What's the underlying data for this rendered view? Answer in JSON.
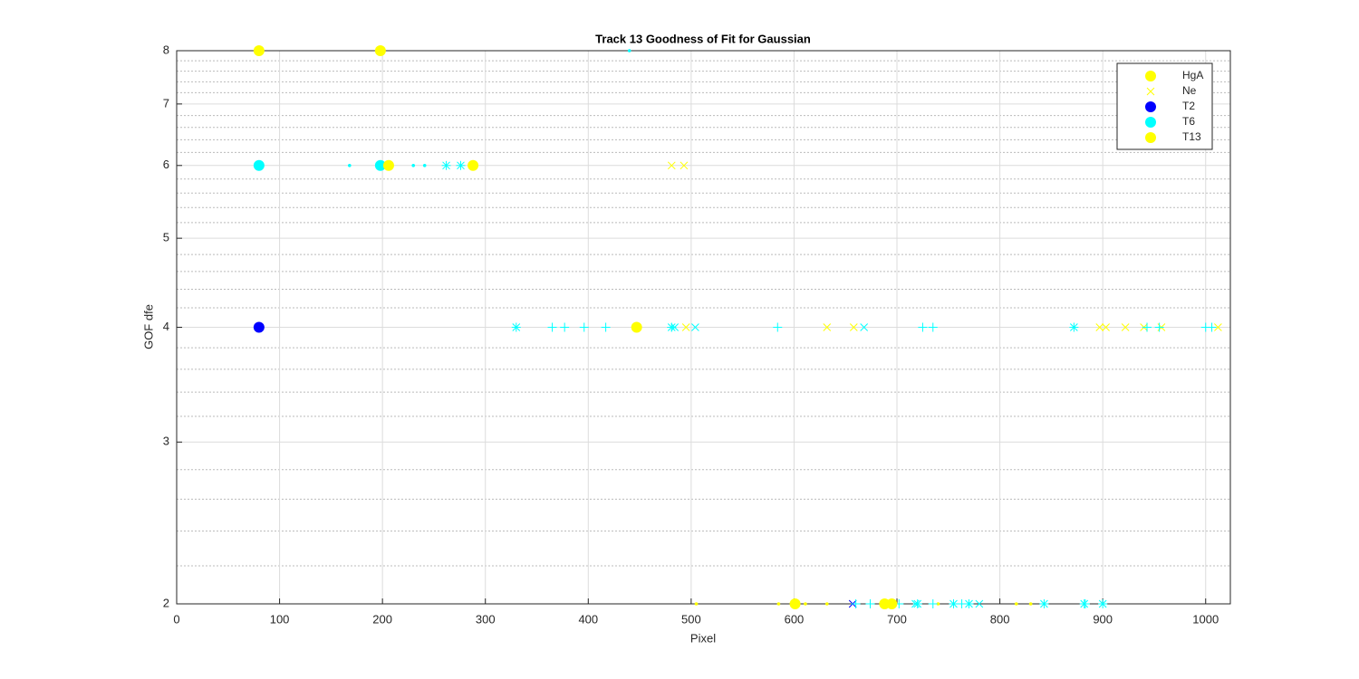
{
  "chart_data": {
    "type": "scatter",
    "title": "Track 13  Goodness of Fit for Gaussian",
    "x_label": "Pixel",
    "y_label": "GOF dfe",
    "log_y": true,
    "grid": true,
    "legend_position": "upper right",
    "xlim": [
      0,
      1024
    ],
    "xticks": [
      0,
      100,
      200,
      300,
      400,
      500,
      600,
      700,
      800,
      900,
      1000
    ],
    "ylim": [
      2,
      8
    ],
    "yticks": [
      2,
      3,
      4,
      5,
      6,
      7,
      8
    ],
    "yminorticks": [
      2.2,
      2.4,
      2.6,
      2.8,
      3.2,
      3.4,
      3.6,
      3.8,
      4.2,
      4.4,
      4.6,
      4.8,
      5.2,
      5.4,
      5.6,
      5.8,
      6.2,
      6.4,
      6.6,
      6.8,
      7.2,
      7.4,
      7.6,
      7.8
    ],
    "series": [
      {
        "name": "HgA",
        "color": "#ffff00",
        "marker": "o",
        "x": [
          80,
          198
        ],
        "values": [
          8,
          8
        ]
      },
      {
        "name": "Ne",
        "color": "#ffff00",
        "marker": "x",
        "x": [
          481,
          493,
          495,
          632,
          658,
          897,
          903,
          922,
          940,
          957,
          1012,
          505,
          585,
          611,
          632,
          740,
          816,
          830
        ],
        "values": [
          6,
          6,
          4,
          4,
          4,
          4,
          4,
          4,
          4,
          4,
          4,
          2,
          2,
          2,
          2,
          2,
          2,
          2
        ],
        "markers": [
          "x",
          "x",
          "x",
          "x",
          "x",
          "x",
          "x",
          "x",
          "x",
          "x",
          "x",
          ".",
          ".",
          ".",
          ".",
          ".",
          ".",
          "."
        ]
      },
      {
        "name": "T2",
        "color": "#0000ff",
        "marker": "o",
        "x": [
          80,
          657
        ],
        "values": [
          4,
          2
        ],
        "markers": [
          "o",
          "x"
        ]
      },
      {
        "name": "T6",
        "color": "#00ffff",
        "marker": "o",
        "x": [
          80,
          198,
          168,
          230,
          241,
          440,
          262,
          276,
          330,
          481,
          872,
          720,
          755,
          770,
          843,
          882,
          900,
          365,
          377,
          396,
          417,
          584,
          725,
          735,
          943,
          955,
          1000,
          1006,
          660,
          674,
          690,
          702,
          735,
          763,
          883,
          484,
          504,
          668,
          718,
          780
        ],
        "values": [
          6,
          6,
          6,
          6,
          6,
          8,
          6,
          6,
          4,
          4,
          4,
          2,
          2,
          2,
          2,
          2,
          2,
          4,
          4,
          4,
          4,
          4,
          4,
          4,
          4,
          4,
          4,
          4,
          2,
          2,
          2,
          2,
          2,
          2,
          2,
          4,
          4,
          4,
          2,
          2
        ],
        "markers": [
          "o",
          "o",
          ".",
          ".",
          ".",
          ".",
          "*",
          "*",
          "*",
          "*",
          "*",
          "*",
          "*",
          "*",
          "*",
          "*",
          "*",
          "+",
          "+",
          "+",
          "+",
          "+",
          "+",
          "+",
          "+",
          "+",
          "+",
          "+",
          "+",
          "+",
          "+",
          "+",
          "+",
          "+",
          "+",
          "x",
          "x",
          "x",
          "x",
          "x"
        ]
      },
      {
        "name": "T13",
        "color": "#ffff00",
        "marker": "o",
        "x": [
          206,
          288,
          447,
          601,
          688,
          695
        ],
        "values": [
          6,
          6,
          4,
          2,
          2,
          2
        ]
      }
    ]
  }
}
